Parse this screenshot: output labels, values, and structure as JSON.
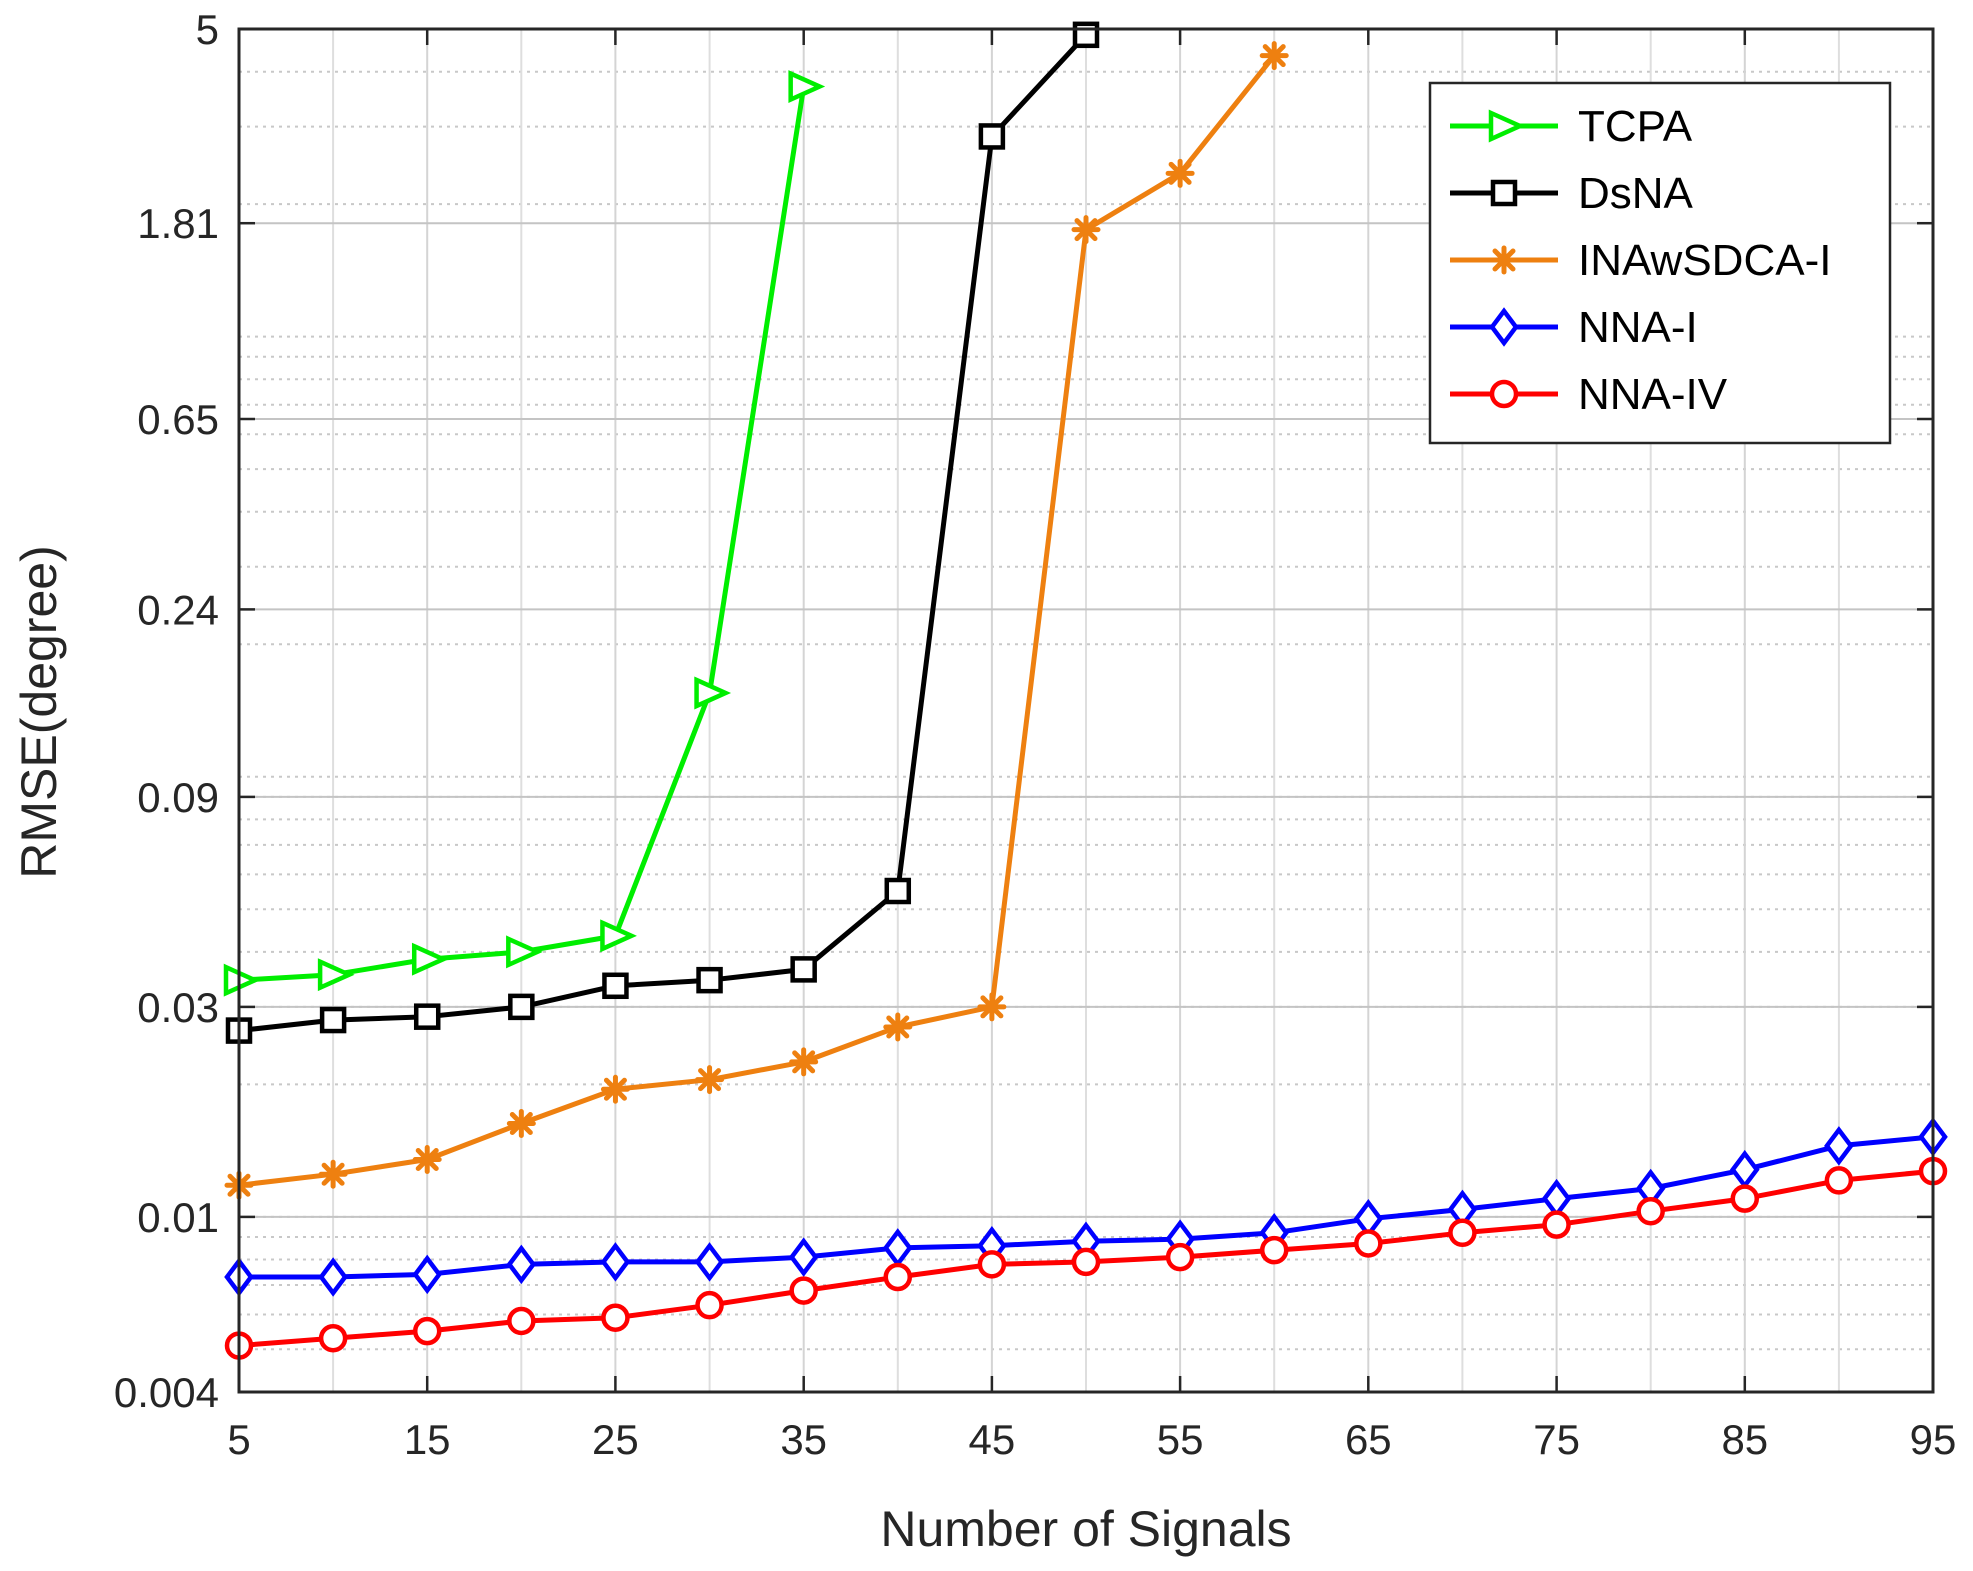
{
  "chart_data": {
    "type": "line",
    "xlabel": "Number of Signals",
    "ylabel": "RMSE(degree)",
    "y_scale": "log",
    "xlim": [
      5,
      95
    ],
    "ylim": [
      0.004,
      5
    ],
    "xticks": [
      5,
      15,
      25,
      35,
      45,
      55,
      65,
      75,
      85,
      95
    ],
    "xtick_labels": [
      "5",
      "15",
      "25",
      "35",
      "45",
      "55",
      "65",
      "75",
      "85",
      "95"
    ],
    "yticks": [
      0.004,
      0.01,
      0.03,
      0.09,
      0.24,
      0.65,
      1.81,
      5
    ],
    "ytick_labels": [
      "0.004",
      "0.01",
      "0.03",
      "0.09",
      "0.24",
      "0.65",
      "1.81",
      "5"
    ],
    "grid": true,
    "legend_position": "top-right",
    "series": [
      {
        "name": "TCPA",
        "color": "#00ee00",
        "marker": "triangle-right",
        "x": [
          5,
          10,
          15,
          20,
          25,
          30,
          35
        ],
        "values": [
          0.0345,
          0.0355,
          0.0385,
          0.04,
          0.0435,
          0.155,
          3.7
        ]
      },
      {
        "name": "DsNA",
        "color": "#000000",
        "marker": "square",
        "x": [
          5,
          10,
          15,
          20,
          25,
          30,
          35,
          40,
          45,
          50
        ],
        "values": [
          0.0265,
          0.028,
          0.0285,
          0.03,
          0.0335,
          0.0345,
          0.0365,
          0.055,
          2.85,
          4.85
        ]
      },
      {
        "name": "INAwSDCA-I",
        "color": "#ee8010",
        "marker": "asterisk",
        "x": [
          5,
          10,
          15,
          20,
          25,
          30,
          35,
          40,
          45,
          50,
          55,
          60
        ],
        "values": [
          0.0118,
          0.0125,
          0.0135,
          0.0163,
          0.0195,
          0.0205,
          0.0225,
          0.027,
          0.03,
          1.75,
          2.35,
          4.35
        ]
      },
      {
        "name": "NNA-I",
        "color": "#0000ff",
        "marker": "diamond",
        "x": [
          5,
          10,
          15,
          20,
          25,
          30,
          35,
          40,
          45,
          50,
          55,
          60,
          65,
          70,
          75,
          80,
          85,
          90,
          95
        ],
        "values": [
          0.0073,
          0.0073,
          0.0074,
          0.0078,
          0.0079,
          0.0079,
          0.0081,
          0.0085,
          0.0086,
          0.0088,
          0.0089,
          0.0092,
          0.0099,
          0.0104,
          0.011,
          0.0116,
          0.0128,
          0.0145,
          0.0152
        ]
      },
      {
        "name": "NNA-IV",
        "color": "#ff0000",
        "marker": "circle",
        "x": [
          5,
          10,
          15,
          20,
          25,
          30,
          35,
          40,
          45,
          50,
          55,
          60,
          65,
          70,
          75,
          80,
          85,
          90,
          95
        ],
        "values": [
          0.0051,
          0.0053,
          0.0055,
          0.0058,
          0.0059,
          0.0063,
          0.0068,
          0.0073,
          0.0078,
          0.0079,
          0.0081,
          0.0084,
          0.0087,
          0.0092,
          0.0096,
          0.0103,
          0.011,
          0.0121,
          0.0127
        ]
      }
    ]
  }
}
